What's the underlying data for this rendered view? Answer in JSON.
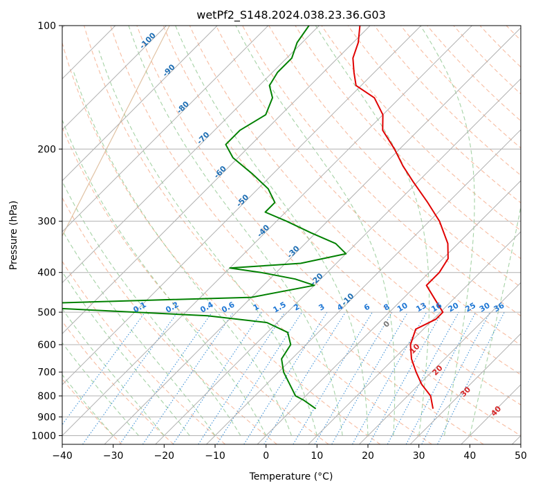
{
  "chart_data": {
    "type": "line",
    "title": "wetPf2_S148.2024.038.23.36.G03",
    "xlabel": "Temperature (°C)",
    "ylabel": "Pressure (hPa)",
    "xlim": [
      -40,
      50
    ],
    "ylim": [
      1050,
      100
    ],
    "y_scale": "log",
    "grid": true,
    "x_ticks": [
      -40,
      -30,
      -20,
      -10,
      0,
      10,
      20,
      30,
      40,
      50
    ],
    "y_ticks": [
      100,
      200,
      300,
      400,
      500,
      600,
      700,
      800,
      900,
      1000
    ],
    "skew_ref_pressure": 1000,
    "colors": {
      "temperature": "#e00000",
      "dewpoint": "#008000",
      "isotherm": "#b0b0b0",
      "dry_adiabat": "#f4a582",
      "moist_adiabat": "#7fbf7f",
      "mixing_ratio": "#3b8fd6",
      "saturation_curve": "#cc9966"
    },
    "series": [
      {
        "id": "temperature",
        "points": [
          {
            "p": 860,
            "t": 27.5
          },
          {
            "p": 800,
            "t": 24.5
          },
          {
            "p": 750,
            "t": 20.5
          },
          {
            "p": 700,
            "t": 17
          },
          {
            "p": 650,
            "t": 13.5
          },
          {
            "p": 600,
            "t": 10.5
          },
          {
            "p": 550,
            "t": 8.5
          },
          {
            "p": 520,
            "t": 10.5
          },
          {
            "p": 500,
            "t": 10.5
          },
          {
            "p": 470,
            "t": 7
          },
          {
            "p": 430,
            "t": 2
          },
          {
            "p": 400,
            "t": 2
          },
          {
            "p": 370,
            "t": 1
          },
          {
            "p": 340,
            "t": -2
          },
          {
            "p": 300,
            "t": -8
          },
          {
            "p": 270,
            "t": -14
          },
          {
            "p": 240,
            "t": -21
          },
          {
            "p": 220,
            "t": -26
          },
          {
            "p": 200,
            "t": -31
          },
          {
            "p": 180,
            "t": -37
          },
          {
            "p": 165,
            "t": -40
          },
          {
            "p": 150,
            "t": -45
          },
          {
            "p": 140,
            "t": -51
          },
          {
            "p": 130,
            "t": -54
          },
          {
            "p": 120,
            "t": -57
          },
          {
            "p": 110,
            "t": -59
          },
          {
            "p": 100,
            "t": -62
          }
        ]
      },
      {
        "id": "dewpoint",
        "points": [
          {
            "p": 860,
            "t": 4.5
          },
          {
            "p": 820,
            "t": 0.5
          },
          {
            "p": 800,
            "t": -2
          },
          {
            "p": 770,
            "t": -4
          },
          {
            "p": 700,
            "t": -9
          },
          {
            "p": 650,
            "t": -12
          },
          {
            "p": 600,
            "t": -13
          },
          {
            "p": 560,
            "t": -16
          },
          {
            "p": 530,
            "t": -22
          },
          {
            "p": 510,
            "t": -35
          },
          {
            "p": 490,
            "t": -65
          },
          {
            "p": 480,
            "t": -80
          },
          {
            "p": 470,
            "t": -56
          },
          {
            "p": 460,
            "t": -30
          },
          {
            "p": 430,
            "t": -20
          },
          {
            "p": 415,
            "t": -25
          },
          {
            "p": 400,
            "t": -33
          },
          {
            "p": 390,
            "t": -40
          },
          {
            "p": 380,
            "t": -27
          },
          {
            "p": 360,
            "t": -20
          },
          {
            "p": 340,
            "t": -24
          },
          {
            "p": 320,
            "t": -31
          },
          {
            "p": 300,
            "t": -38
          },
          {
            "p": 285,
            "t": -44
          },
          {
            "p": 270,
            "t": -44
          },
          {
            "p": 250,
            "t": -48
          },
          {
            "p": 230,
            "t": -54
          },
          {
            "p": 210,
            "t": -61
          },
          {
            "p": 195,
            "t": -65
          },
          {
            "p": 180,
            "t": -65
          },
          {
            "p": 165,
            "t": -63
          },
          {
            "p": 150,
            "t": -65
          },
          {
            "p": 140,
            "t": -68
          },
          {
            "p": 130,
            "t": -69
          },
          {
            "p": 120,
            "t": -69
          },
          {
            "p": 110,
            "t": -71
          },
          {
            "p": 100,
            "t": -72
          }
        ]
      }
    ],
    "temperature_labels": [
      {
        "text": "-100",
        "p": 110
      },
      {
        "text": "-90",
        "p": 130
      },
      {
        "text": "-80",
        "p": 160
      },
      {
        "text": "-70",
        "p": 190
      },
      {
        "text": "-60",
        "p": 230
      },
      {
        "text": "-50",
        "p": 270
      },
      {
        "text": "-40",
        "p": 320
      },
      {
        "text": "-30",
        "p": 360
      },
      {
        "text": "-20",
        "p": 420
      },
      {
        "text": "-10",
        "p": 470
      }
    ],
    "mixing_ratio_labels": [
      "0.1",
      "0.2",
      "0.4",
      "0.6",
      "1",
      "1.5",
      "2",
      "3",
      "4",
      "6",
      "8",
      "10",
      "13",
      "16",
      "20",
      "25",
      "30",
      "36"
    ],
    "mixing_ratio_values": [
      0.1,
      0.2,
      0.4,
      0.6,
      1,
      1.5,
      2,
      3,
      4,
      6,
      8,
      10,
      13,
      16,
      20,
      25,
      30,
      36
    ],
    "dry_adiabat_labels": [
      {
        "text": "10",
        "t": 29.5,
        "p": 620
      },
      {
        "text": "20",
        "t": 34,
        "p": 700
      },
      {
        "text": "30",
        "t": 39.5,
        "p": 790
      },
      {
        "text": "40",
        "t": 45.5,
        "p": 880
      }
    ],
    "moist_adiabat_labels": [
      {
        "text": "0",
        "t": 24,
        "p": 540
      }
    ]
  }
}
